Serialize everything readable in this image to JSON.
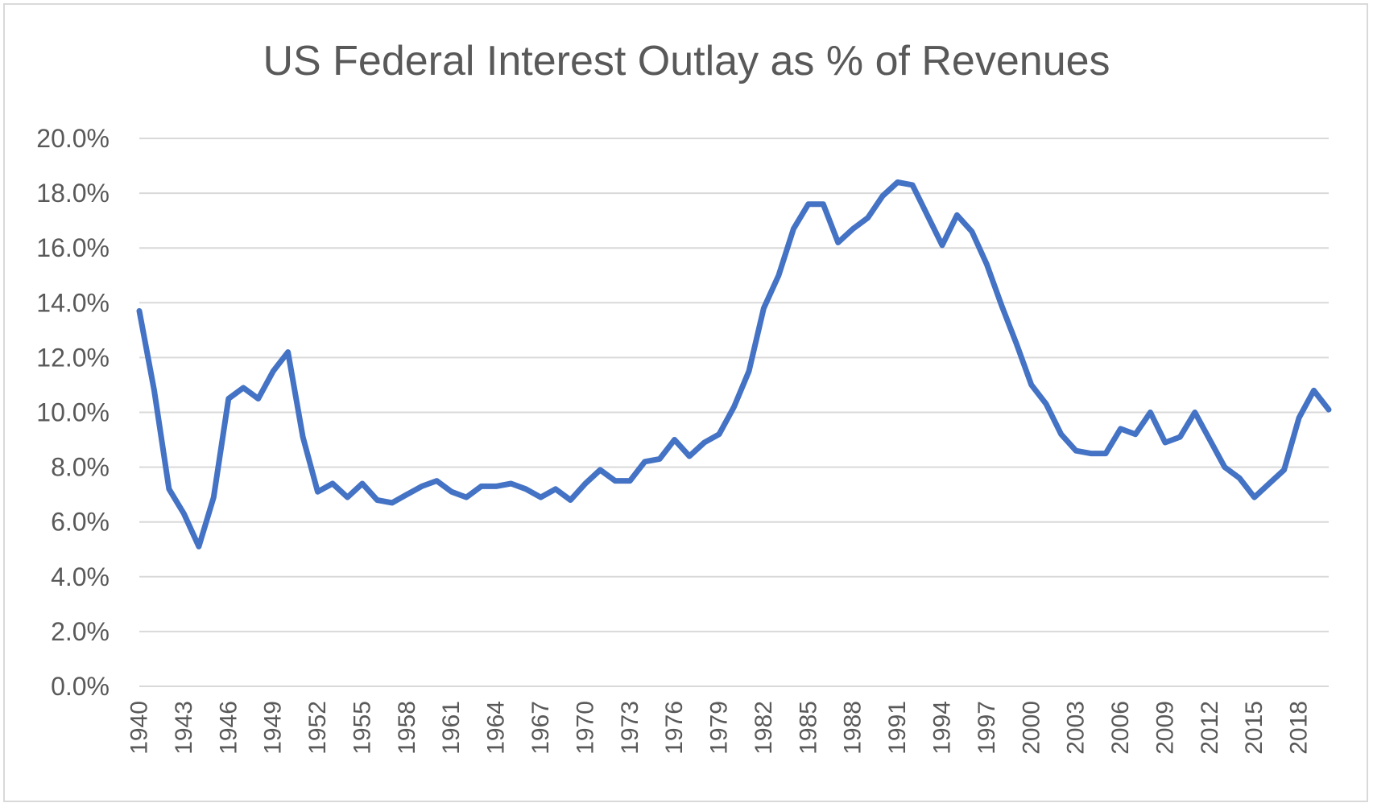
{
  "chart_data": {
    "type": "line",
    "title": "US Federal Interest Outlay as % of Revenues",
    "xlabel": "",
    "ylabel": "",
    "ylim": [
      0,
      20
    ],
    "y_ticks": [
      "0.0%",
      "2.0%",
      "4.0%",
      "6.0%",
      "8.0%",
      "10.0%",
      "12.0%",
      "14.0%",
      "16.0%",
      "18.0%",
      "20.0%"
    ],
    "x_ticks": [
      "1940",
      "1943",
      "1946",
      "1949",
      "1952",
      "1955",
      "1958",
      "1961",
      "1964",
      "1967",
      "1970",
      "1973",
      "1976",
      "1979",
      "1982",
      "1985",
      "1988",
      "1991",
      "1994",
      "1997",
      "2000",
      "2003",
      "2006",
      "2009",
      "2012",
      "2015",
      "2018"
    ],
    "grid": true,
    "legend": "none",
    "series": [
      {
        "name": "Interest Outlay % of Revenues",
        "color": "#4472c4",
        "x": [
          1940,
          1941,
          1942,
          1943,
          1944,
          1945,
          1946,
          1947,
          1948,
          1949,
          1950,
          1951,
          1952,
          1953,
          1954,
          1955,
          1956,
          1957,
          1958,
          1959,
          1960,
          1961,
          1962,
          1963,
          1964,
          1965,
          1966,
          1967,
          1968,
          1969,
          1970,
          1971,
          1972,
          1973,
          1974,
          1975,
          1976,
          1977,
          1978,
          1979,
          1980,
          1981,
          1982,
          1983,
          1984,
          1985,
          1986,
          1987,
          1988,
          1989,
          1990,
          1991,
          1992,
          1993,
          1994,
          1995,
          1996,
          1997,
          1998,
          1999,
          2000,
          2001,
          2002,
          2003,
          2004,
          2005,
          2006,
          2007,
          2008,
          2009,
          2010,
          2011,
          2012,
          2013,
          2014,
          2015,
          2016,
          2017,
          2018,
          2019,
          2020
        ],
        "values": [
          13.7,
          10.8,
          7.2,
          6.3,
          5.1,
          6.9,
          10.5,
          10.9,
          10.5,
          11.5,
          12.2,
          9.1,
          7.1,
          7.4,
          6.9,
          7.4,
          6.8,
          6.7,
          7.0,
          7.3,
          7.5,
          7.1,
          6.9,
          7.3,
          7.3,
          7.4,
          7.2,
          6.9,
          7.2,
          6.8,
          7.4,
          7.9,
          7.5,
          7.5,
          8.2,
          8.3,
          9.0,
          8.4,
          8.9,
          9.2,
          10.2,
          11.5,
          13.8,
          15.0,
          16.7,
          17.6,
          17.6,
          16.2,
          16.7,
          17.1,
          17.9,
          18.4,
          18.3,
          17.2,
          16.1,
          17.2,
          16.6,
          15.4,
          13.9,
          12.5,
          11.0,
          10.3,
          9.2,
          8.6,
          8.5,
          8.5,
          9.4,
          9.2,
          10.0,
          8.9,
          9.1,
          10.0,
          9.0,
          8.0,
          7.6,
          6.9,
          7.4,
          7.9,
          9.8,
          10.8,
          10.1
        ]
      }
    ]
  }
}
